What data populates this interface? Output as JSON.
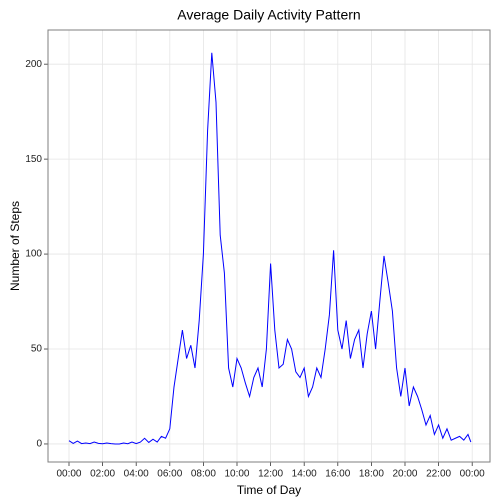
{
  "chart_data": {
    "type": "line",
    "title": "Average Daily Activity Pattern",
    "x_label": "Time of Day",
    "y_label": "Number of Steps",
    "x": [
      0,
      0.25,
      0.5,
      0.75,
      1,
      1.25,
      1.5,
      1.75,
      2,
      2.25,
      2.5,
      2.75,
      3,
      3.25,
      3.5,
      3.75,
      4,
      4.25,
      4.5,
      4.75,
      5,
      5.25,
      5.5,
      5.75,
      6,
      6.25,
      6.5,
      6.75,
      7,
      7.25,
      7.5,
      7.75,
      8,
      8.25,
      8.5,
      8.75,
      9,
      9.25,
      9.5,
      9.75,
      10,
      10.25,
      10.5,
      10.75,
      11,
      11.25,
      11.5,
      11.75,
      12,
      12.25,
      12.5,
      12.75,
      13,
      13.25,
      13.5,
      13.75,
      14,
      14.25,
      14.5,
      14.75,
      15,
      15.25,
      15.5,
      15.75,
      16,
      16.25,
      16.5,
      16.75,
      17,
      17.25,
      17.5,
      17.75,
      18,
      18.25,
      18.5,
      18.75,
      19,
      19.25,
      19.5,
      19.75,
      20,
      20.25,
      20.5,
      20.75,
      21,
      21.25,
      21.5,
      21.75,
      22,
      22.25,
      22.5,
      22.75,
      23,
      23.25,
      23.5,
      23.75,
      23.92
    ],
    "series": [
      {
        "name": "steps",
        "color": "#0000ff",
        "values": [
          1.7,
          0.3,
          1.5,
          0.2,
          0.5,
          0.2,
          1,
          0.3,
          0.1,
          0.5,
          0.2,
          0,
          0,
          0.5,
          0.1,
          1,
          0.2,
          1,
          3,
          0.8,
          2.5,
          1,
          4,
          3,
          8,
          30,
          45,
          60,
          45,
          52,
          40,
          65,
          100,
          165,
          206,
          180,
          110,
          90,
          40,
          30,
          45,
          40,
          32,
          25,
          35,
          40,
          30,
          50,
          95,
          60,
          40,
          42,
          55,
          50,
          38,
          35,
          40,
          25,
          30,
          40,
          35,
          50,
          68,
          102,
          60,
          50,
          65,
          45,
          55,
          60,
          40,
          58,
          70,
          50,
          75,
          99,
          85,
          70,
          40,
          25,
          40,
          20,
          30,
          25,
          18,
          10,
          15,
          5,
          10,
          3,
          8,
          2,
          3,
          4,
          2,
          5,
          1
        ]
      }
    ],
    "xlim": [
      -1.25,
      25.06
    ],
    "ylim": [
      -9.5,
      218
    ],
    "xticks": [
      {
        "value": 0,
        "label": "00:00"
      },
      {
        "value": 2,
        "label": "02:00"
      },
      {
        "value": 4,
        "label": "04:00"
      },
      {
        "value": 6,
        "label": "06:00"
      },
      {
        "value": 8,
        "label": "08:00"
      },
      {
        "value": 10,
        "label": "10:00"
      },
      {
        "value": 12,
        "label": "12:00"
      },
      {
        "value": 14,
        "label": "14:00"
      },
      {
        "value": 16,
        "label": "16:00"
      },
      {
        "value": 18,
        "label": "18:00"
      },
      {
        "value": 20,
        "label": "20:00"
      },
      {
        "value": 22,
        "label": "22:00"
      },
      {
        "value": 24,
        "label": "00:00"
      }
    ],
    "yticks": [
      0,
      50,
      100,
      150,
      200
    ],
    "grid": true
  }
}
